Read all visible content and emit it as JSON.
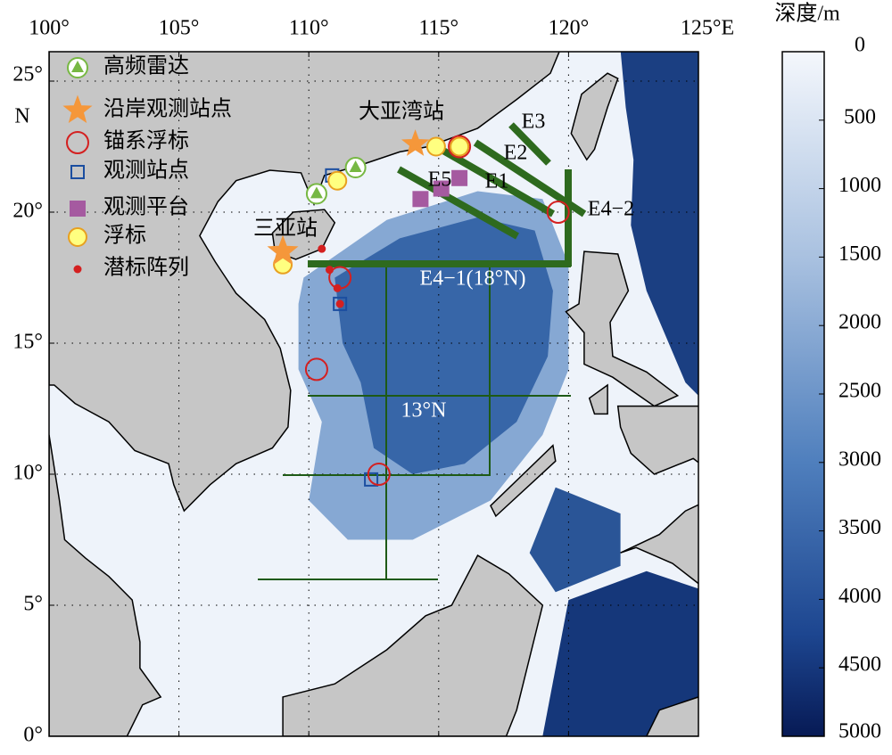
{
  "map": {
    "x_axis": {
      "ticks": [
        "100°",
        "105°",
        "110°",
        "115°",
        "120°",
        "125°E"
      ]
    },
    "y_axis": {
      "ticks": [
        "0°",
        "5°",
        "10°",
        "15°",
        "20°",
        "25°"
      ],
      "unit": "N"
    },
    "legend": [
      "高频雷达",
      "沿岸观测站点",
      "锚系浮标",
      "观测站点",
      "观测平台",
      "浮标",
      "潜标阵列"
    ],
    "labels": {
      "dayawan": "大亚湾站",
      "sanya": "三亚站",
      "e1": "E1",
      "e2": "E2",
      "e3": "E3",
      "e5": "E5",
      "e4_2": "E4−2",
      "e4_1": "E4−1(18°N)",
      "n13": "13°N"
    },
    "colorbar": {
      "title": "深度/m",
      "ticks": [
        0,
        500,
        1000,
        1500,
        2000,
        2500,
        3000,
        3500,
        4000,
        4500,
        5000
      ]
    }
  }
}
